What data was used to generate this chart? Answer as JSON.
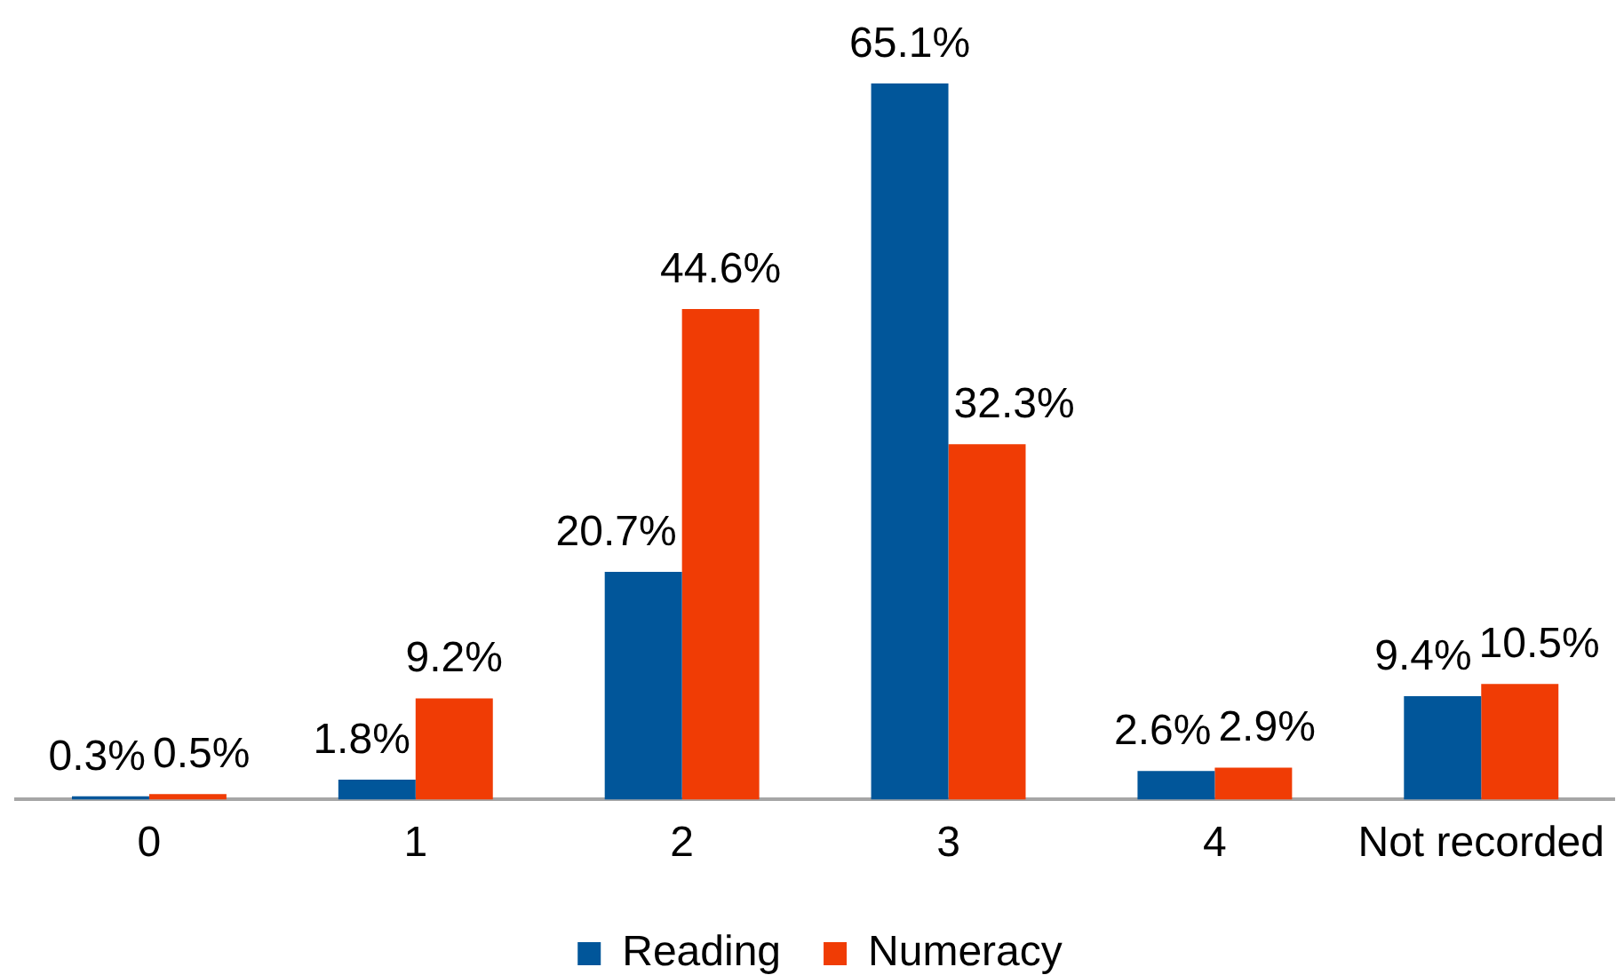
{
  "chart_data": {
    "type": "bar",
    "categories": [
      "0",
      "1",
      "2",
      "3",
      "4",
      "Not recorded"
    ],
    "series": [
      {
        "name": "Reading",
        "color": "#01569a",
        "values": [
          0.3,
          1.8,
          20.7,
          65.1,
          2.6,
          9.4
        ],
        "value_labels": [
          "0.3%",
          "1.8%",
          "20.7%",
          "65.1%",
          "2.6%",
          "9.4%"
        ]
      },
      {
        "name": "Numeracy",
        "color": "#f03c05",
        "values": [
          0.5,
          9.2,
          44.6,
          32.3,
          2.9,
          10.5
        ],
        "value_labels": [
          "0.5%",
          "9.2%",
          "44.6%",
          "32.3%",
          "2.9%",
          "10.5%"
        ]
      }
    ],
    "grid": false,
    "legend": "bottom",
    "tick_labels": "x"
  }
}
